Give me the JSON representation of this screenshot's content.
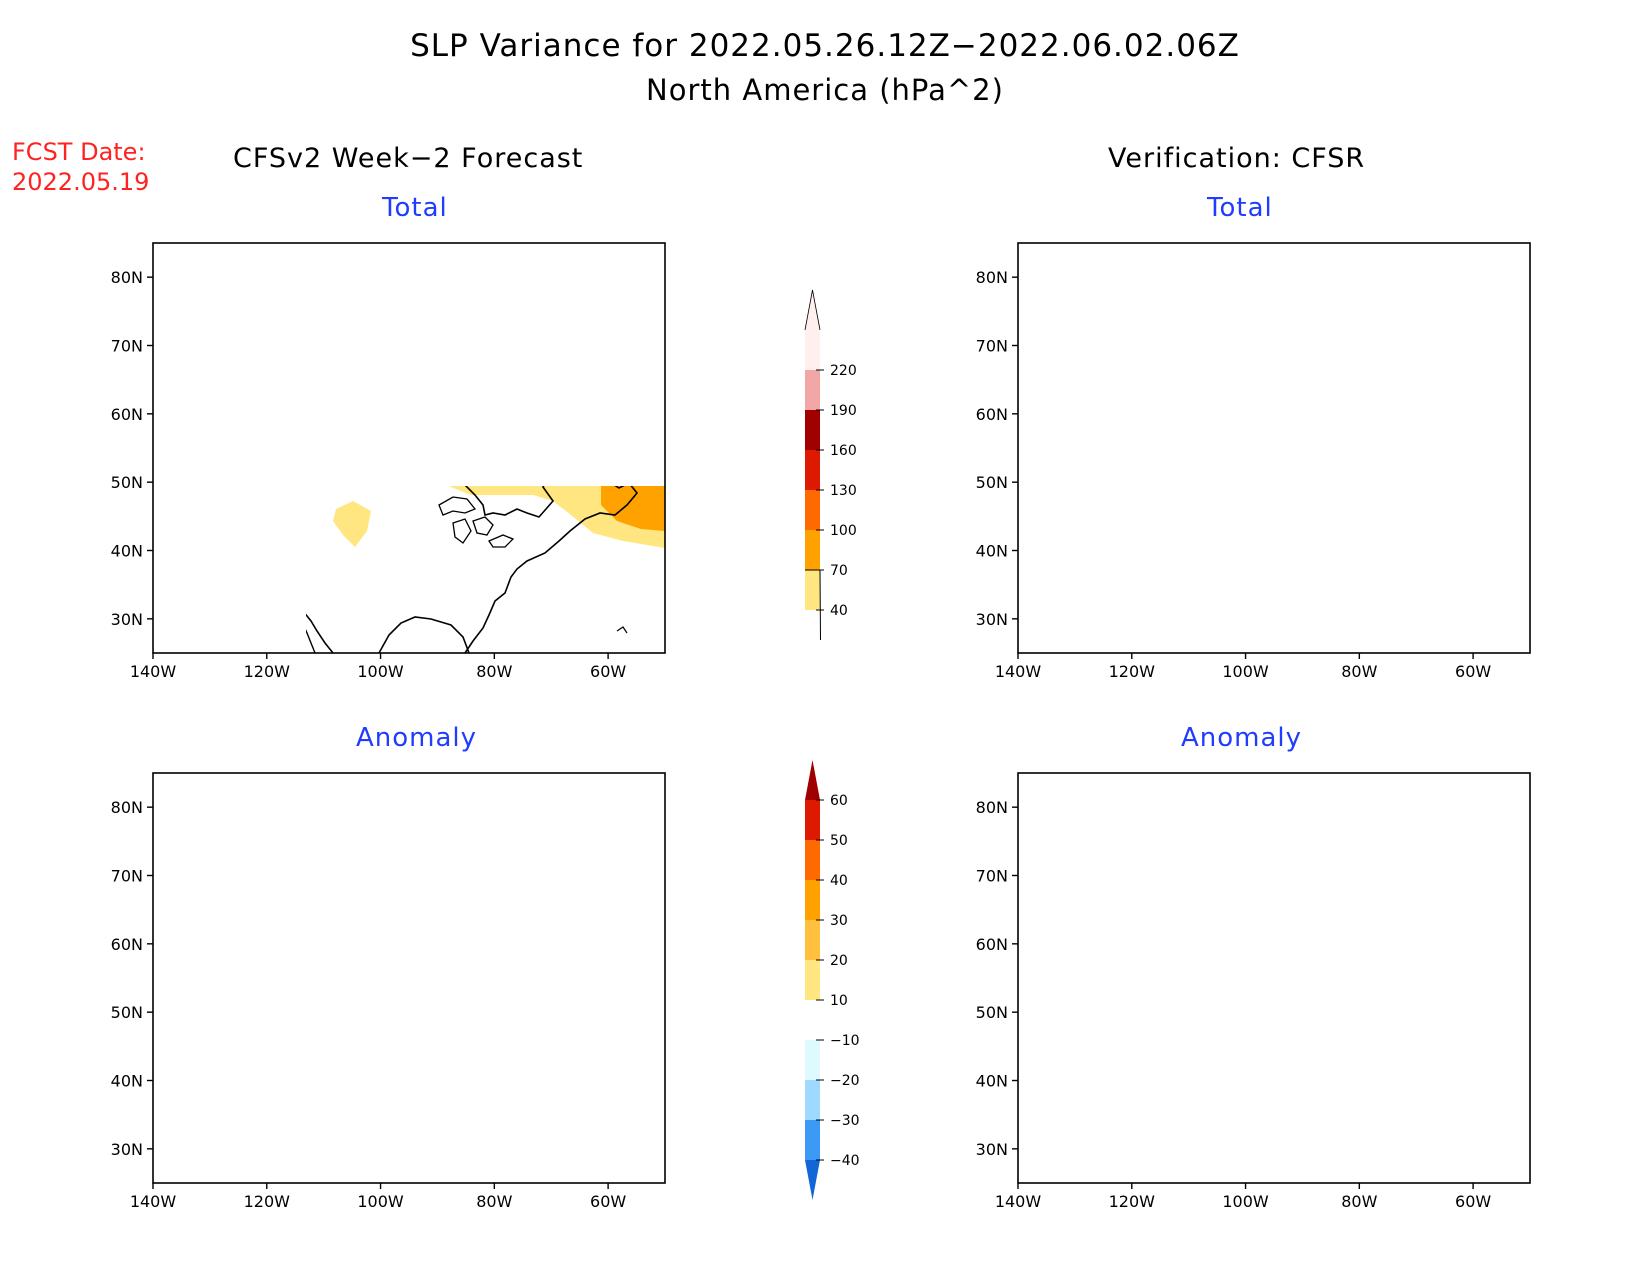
{
  "title": "SLP Variance for 2022.05.26.12Z−2022.06.02.06Z",
  "subtitle": "North America (hPa^2)",
  "fcst_label": "FCST Date:",
  "fcst_date": "2022.05.19",
  "left_column_title": "CFSv2 Week−2 Forecast",
  "right_column_title": "Verification: CFSR",
  "panels": {
    "forecast_total": {
      "label": "Total"
    },
    "verification_total": {
      "label": "Total"
    },
    "forecast_anomaly": {
      "label": "Anomaly"
    },
    "verification_anomaly": {
      "label": "Anomaly"
    }
  },
  "axes": {
    "lat_labels": [
      "80N",
      "70N",
      "60N",
      "50N",
      "40N",
      "30N"
    ],
    "lon_labels": [
      "140W",
      "120W",
      "100W",
      "80W",
      "60W"
    ],
    "lat_values": [
      80,
      70,
      60,
      50,
      40,
      30
    ],
    "lon_values": [
      -140,
      -120,
      -100,
      -80,
      -60
    ],
    "lon_range": [
      -140,
      -50
    ],
    "lat_range": [
      25,
      85
    ]
  },
  "total_colorbar": {
    "labels": [
      "220",
      "190",
      "160",
      "130",
      "100",
      "70",
      "40"
    ],
    "colors": [
      "#fff0ee",
      "#f2a6a6",
      "#a00000",
      "#dd1a00",
      "#ff6a00",
      "#ffa200",
      "#ffe680"
    ]
  },
  "anomaly_colorbar": {
    "labels": [
      "60",
      "50",
      "40",
      "30",
      "20",
      "10",
      "−10",
      "−20",
      "−30",
      "−40"
    ],
    "colors": [
      "#a00000",
      "#dd1a00",
      "#ff6a00",
      "#ffa200",
      "#ffc040",
      "#ffe680",
      "#ffffff",
      "#ddfbff",
      "#9fd9ff",
      "#3c99f5",
      "#1266d6"
    ]
  },
  "palette": {
    "yellow": "#ffe680",
    "light_orange": "#ffc040",
    "orange": "#ffa200",
    "dark_orange": "#ff6a00",
    "red": "#dd1a00",
    "dark_red": "#a00000",
    "very_light_blue": "#ddfbff",
    "light_blue": "#9fd9ff",
    "blue": "#3c99f5",
    "dark_blue": "#1266d6"
  }
}
